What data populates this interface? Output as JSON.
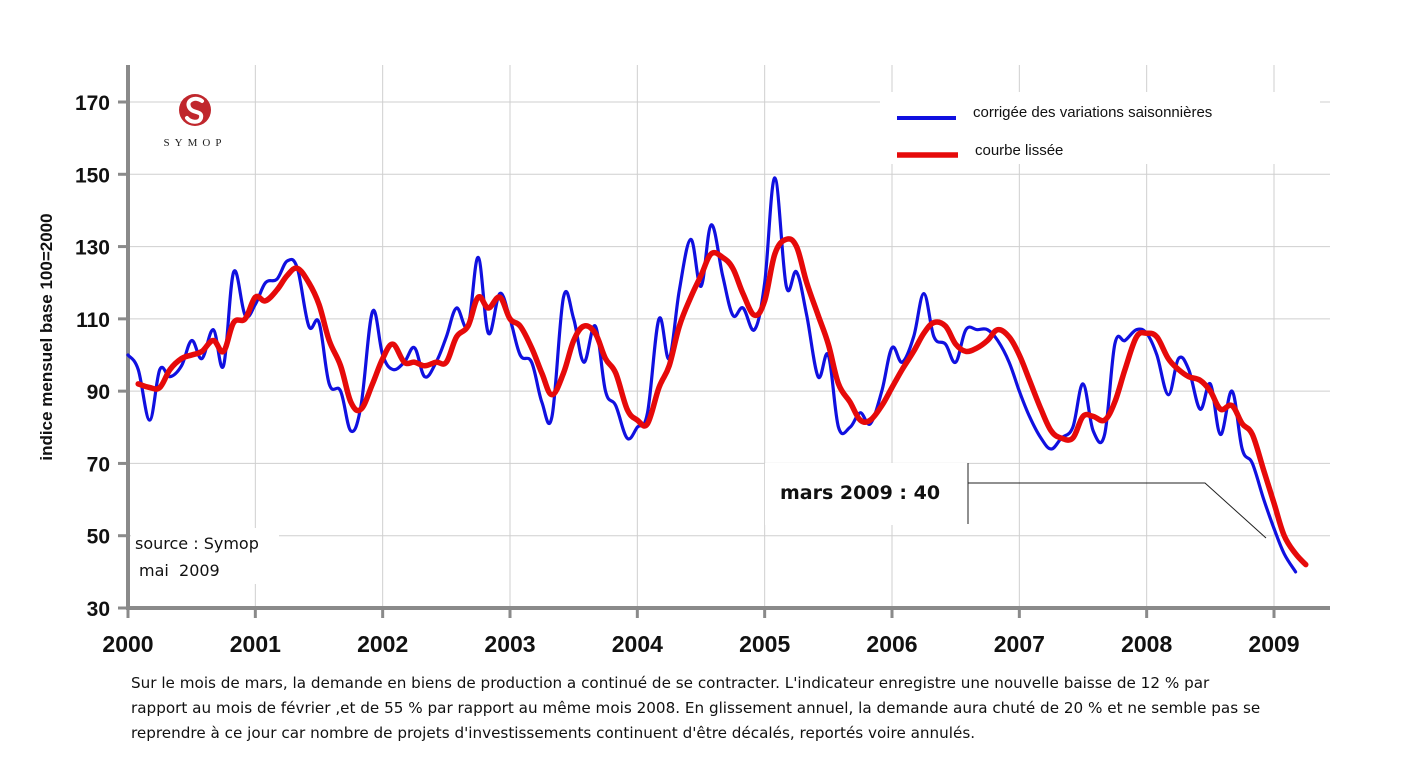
{
  "logo": {
    "brand": "SYMOP",
    "color": "#c0272d"
  },
  "source_note": {
    "line1": "source : Symop",
    "line2": "mai  2009"
  },
  "annotation": {
    "text": "mars 2009 : 40"
  },
  "caption": {
    "lines": [
      "Sur le mois de mars, la demande en biens de production a continué de se contracter. L'indicateur enregistre une nouvelle baisse de 12 % par",
      "rapport au mois de février ,et de 55 % par rapport au même mois 2008.  En glissement annuel, la demande aura chuté de 20 % et ne semble pas se",
      "reprendre à ce jour car nombre de projets d'investissements continuent d'être décalés, reportés voire annulés."
    ]
  },
  "chart_data": {
    "type": "line",
    "title": "",
    "xlabel": "",
    "ylabel": "indice mensuel base 100=2000",
    "xlim": [
      2000,
      2009.5
    ],
    "ylim": [
      30,
      180
    ],
    "x_ticks": [
      2000,
      2001,
      2002,
      2003,
      2004,
      2005,
      2006,
      2007,
      2008,
      2009
    ],
    "x_tick_labels": [
      "2000",
      "2001",
      "2002",
      "2003",
      "2004",
      "2005",
      "2006",
      "2007",
      "2008",
      "2009"
    ],
    "y_ticks": [
      30,
      50,
      70,
      90,
      110,
      130,
      150,
      170
    ],
    "grid": true,
    "legend_position": "top-right",
    "series": [
      {
        "name": "corrigée des variations saisonnières",
        "color": "#1010e0",
        "points": [
          [
            2000.0,
            100
          ],
          [
            2000.08,
            96
          ],
          [
            2000.17,
            82
          ],
          [
            2000.25,
            96
          ],
          [
            2000.33,
            94
          ],
          [
            2000.42,
            97
          ],
          [
            2000.5,
            104
          ],
          [
            2000.58,
            99
          ],
          [
            2000.67,
            107
          ],
          [
            2000.75,
            97
          ],
          [
            2000.83,
            123
          ],
          [
            2000.92,
            111
          ],
          [
            2001.0,
            114
          ],
          [
            2001.08,
            120
          ],
          [
            2001.17,
            121
          ],
          [
            2001.25,
            126
          ],
          [
            2001.33,
            124
          ],
          [
            2001.42,
            108
          ],
          [
            2001.5,
            109
          ],
          [
            2001.58,
            92
          ],
          [
            2001.67,
            90
          ],
          [
            2001.75,
            79
          ],
          [
            2001.83,
            86
          ],
          [
            2001.92,
            112
          ],
          [
            2002.0,
            100
          ],
          [
            2002.08,
            96
          ],
          [
            2002.17,
            98
          ],
          [
            2002.25,
            102
          ],
          [
            2002.33,
            94
          ],
          [
            2002.42,
            98
          ],
          [
            2002.5,
            105
          ],
          [
            2002.58,
            113
          ],
          [
            2002.67,
            108
          ],
          [
            2002.75,
            127
          ],
          [
            2002.83,
            106
          ],
          [
            2002.92,
            117
          ],
          [
            2003.0,
            110
          ],
          [
            2003.08,
            100
          ],
          [
            2003.17,
            98
          ],
          [
            2003.25,
            87
          ],
          [
            2003.33,
            83
          ],
          [
            2003.42,
            116
          ],
          [
            2003.5,
            110
          ],
          [
            2003.58,
            98
          ],
          [
            2003.67,
            108
          ],
          [
            2003.75,
            90
          ],
          [
            2003.83,
            86
          ],
          [
            2003.92,
            77
          ],
          [
            2004.0,
            80
          ],
          [
            2004.08,
            84
          ],
          [
            2004.17,
            110
          ],
          [
            2004.25,
            99
          ],
          [
            2004.33,
            118
          ],
          [
            2004.42,
            132
          ],
          [
            2004.5,
            119
          ],
          [
            2004.58,
            136
          ],
          [
            2004.67,
            122
          ],
          [
            2004.75,
            111
          ],
          [
            2004.83,
            113
          ],
          [
            2004.92,
            107
          ],
          [
            2005.0,
            120
          ],
          [
            2005.08,
            149
          ],
          [
            2005.17,
            119
          ],
          [
            2005.25,
            123
          ],
          [
            2005.33,
            111
          ],
          [
            2005.42,
            94
          ],
          [
            2005.5,
            100
          ],
          [
            2005.58,
            80
          ],
          [
            2005.67,
            80
          ],
          [
            2005.75,
            84
          ],
          [
            2005.83,
            81
          ],
          [
            2005.92,
            90
          ],
          [
            2006.0,
            102
          ],
          [
            2006.08,
            98
          ],
          [
            2006.17,
            105
          ],
          [
            2006.25,
            117
          ],
          [
            2006.33,
            105
          ],
          [
            2006.42,
            103
          ],
          [
            2006.5,
            98
          ],
          [
            2006.58,
            107
          ],
          [
            2006.67,
            107
          ],
          [
            2006.75,
            107
          ],
          [
            2006.83,
            104
          ],
          [
            2006.92,
            98
          ],
          [
            2007.0,
            90
          ],
          [
            2007.08,
            83
          ],
          [
            2007.17,
            77
          ],
          [
            2007.25,
            74
          ],
          [
            2007.33,
            77
          ],
          [
            2007.42,
            80
          ],
          [
            2007.5,
            92
          ],
          [
            2007.58,
            79
          ],
          [
            2007.67,
            78
          ],
          [
            2007.75,
            103
          ],
          [
            2007.83,
            104
          ],
          [
            2007.92,
            107
          ],
          [
            2008.0,
            106
          ],
          [
            2008.08,
            100
          ],
          [
            2008.17,
            89
          ],
          [
            2008.25,
            99
          ],
          [
            2008.33,
            96
          ],
          [
            2008.42,
            85
          ],
          [
            2008.5,
            92
          ],
          [
            2008.58,
            78
          ],
          [
            2008.67,
            90
          ],
          [
            2008.75,
            74
          ],
          [
            2008.83,
            70
          ],
          [
            2008.92,
            60
          ],
          [
            2009.0,
            52
          ],
          [
            2009.08,
            45
          ],
          [
            2009.17,
            40
          ]
        ]
      },
      {
        "name": "courbe lissée",
        "color": "#e60a0a",
        "points": [
          [
            2000.08,
            92
          ],
          [
            2000.17,
            91
          ],
          [
            2000.25,
            91
          ],
          [
            2000.33,
            96
          ],
          [
            2000.42,
            99
          ],
          [
            2000.5,
            100
          ],
          [
            2000.58,
            101
          ],
          [
            2000.67,
            104
          ],
          [
            2000.75,
            101
          ],
          [
            2000.83,
            109
          ],
          [
            2000.92,
            110
          ],
          [
            2001.0,
            116
          ],
          [
            2001.08,
            115
          ],
          [
            2001.17,
            118
          ],
          [
            2001.25,
            122
          ],
          [
            2001.33,
            124
          ],
          [
            2001.42,
            120
          ],
          [
            2001.5,
            114
          ],
          [
            2001.58,
            104
          ],
          [
            2001.67,
            97
          ],
          [
            2001.75,
            87
          ],
          [
            2001.83,
            85
          ],
          [
            2001.92,
            92
          ],
          [
            2002.0,
            99
          ],
          [
            2002.08,
            103
          ],
          [
            2002.17,
            98
          ],
          [
            2002.25,
            98
          ],
          [
            2002.33,
            97
          ],
          [
            2002.42,
            98
          ],
          [
            2002.5,
            98
          ],
          [
            2002.58,
            105
          ],
          [
            2002.67,
            108
          ],
          [
            2002.75,
            116
          ],
          [
            2002.83,
            113
          ],
          [
            2002.92,
            116
          ],
          [
            2003.0,
            110
          ],
          [
            2003.08,
            108
          ],
          [
            2003.17,
            102
          ],
          [
            2003.25,
            95
          ],
          [
            2003.33,
            89
          ],
          [
            2003.42,
            95
          ],
          [
            2003.5,
            104
          ],
          [
            2003.58,
            108
          ],
          [
            2003.67,
            106
          ],
          [
            2003.75,
            99
          ],
          [
            2003.83,
            95
          ],
          [
            2003.92,
            85
          ],
          [
            2004.0,
            82
          ],
          [
            2004.08,
            81
          ],
          [
            2004.17,
            91
          ],
          [
            2004.25,
            97
          ],
          [
            2004.33,
            108
          ],
          [
            2004.42,
            116
          ],
          [
            2004.5,
            122
          ],
          [
            2004.58,
            128
          ],
          [
            2004.67,
            127
          ],
          [
            2004.75,
            124
          ],
          [
            2004.83,
            117
          ],
          [
            2004.92,
            111
          ],
          [
            2005.0,
            115
          ],
          [
            2005.08,
            128
          ],
          [
            2005.17,
            132
          ],
          [
            2005.25,
            130
          ],
          [
            2005.33,
            120
          ],
          [
            2005.42,
            111
          ],
          [
            2005.5,
            103
          ],
          [
            2005.58,
            92
          ],
          [
            2005.67,
            87
          ],
          [
            2005.75,
            82
          ],
          [
            2005.83,
            82
          ],
          [
            2005.92,
            86
          ],
          [
            2006.0,
            91
          ],
          [
            2006.08,
            96
          ],
          [
            2006.17,
            101
          ],
          [
            2006.25,
            106
          ],
          [
            2006.33,
            109
          ],
          [
            2006.42,
            108
          ],
          [
            2006.5,
            103
          ],
          [
            2006.58,
            101
          ],
          [
            2006.67,
            102
          ],
          [
            2006.75,
            104
          ],
          [
            2006.83,
            107
          ],
          [
            2006.92,
            105
          ],
          [
            2007.0,
            100
          ],
          [
            2007.08,
            93
          ],
          [
            2007.17,
            85
          ],
          [
            2007.25,
            79
          ],
          [
            2007.33,
            77
          ],
          [
            2007.42,
            77
          ],
          [
            2007.5,
            83
          ],
          [
            2007.58,
            83
          ],
          [
            2007.67,
            82
          ],
          [
            2007.75,
            87
          ],
          [
            2007.83,
            96
          ],
          [
            2007.92,
            105
          ],
          [
            2008.0,
            106
          ],
          [
            2008.08,
            105
          ],
          [
            2008.17,
            99
          ],
          [
            2008.25,
            96
          ],
          [
            2008.33,
            94
          ],
          [
            2008.42,
            93
          ],
          [
            2008.5,
            90
          ],
          [
            2008.58,
            85
          ],
          [
            2008.67,
            86
          ],
          [
            2008.75,
            81
          ],
          [
            2008.83,
            78
          ],
          [
            2008.92,
            68
          ],
          [
            2009.0,
            59
          ],
          [
            2009.08,
            50
          ],
          [
            2009.17,
            45
          ],
          [
            2009.25,
            42
          ]
        ]
      }
    ]
  }
}
